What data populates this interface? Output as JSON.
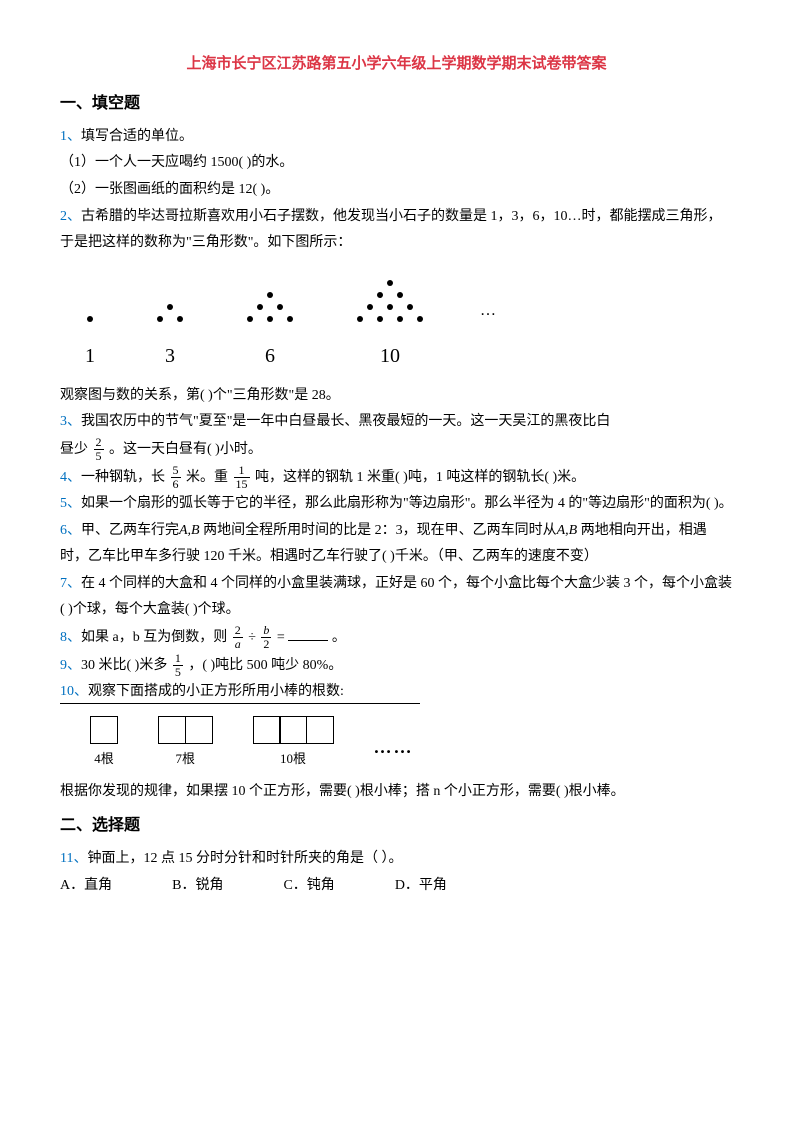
{
  "doc_title": "上海市长宁区江苏路第五小学六年级上学期数学期末试卷带答案",
  "section1_heading": "一、填空题",
  "section2_heading": "二、选择题",
  "triangle_figure": {
    "groups": [
      1,
      3,
      6,
      10
    ],
    "ellipsis": "…"
  },
  "squares_figure": {
    "groups": [
      {
        "squares": 1,
        "label": "4根"
      },
      {
        "squares": 2,
        "label": "7根"
      },
      {
        "squares": 3,
        "label": "10根"
      }
    ],
    "dots": "……"
  },
  "q": {
    "1": {
      "num": "1、",
      "text": "填写合适的单位。",
      "sub1": "（1）一个人一天应喝约 1500(       )的水。",
      "sub2": "（2）一张图画纸的面积约是 12(       )。"
    },
    "2": {
      "num": "2、",
      "text_a": "古希腊的毕达哥拉斯喜欢用小石子摆数，他发现当小石子的数量是 1，3，6，10…时，都能摆成三角形，于是把这样的数称为\"三角形数\"。如下图所示：",
      "text_b": "观察图与数的关系，第(       )个\"三角形数\"是 28。"
    },
    "3": {
      "num": "3、",
      "text_a": "我国农历中的节气\"夏至\"是一年中白昼最长、黑夜最短的一天。这一天吴江的黑夜比白",
      "text_b": "昼少",
      "frac": {
        "n": "2",
        "d": "5"
      },
      "text_c": "。这一天白昼有(       )小时。"
    },
    "4": {
      "num": "4、",
      "text_a": "一种钢轨，长",
      "frac1": {
        "n": "5",
        "d": "6"
      },
      "text_b": "米。重",
      "frac2": {
        "n": "1",
        "d": "15"
      },
      "text_c": "吨，这样的钢轨 1 米重(       )吨，1 吨这样的钢轨长(       )米。"
    },
    "5": {
      "num": "5、",
      "text": "如果一个扇形的弧长等于它的半径，那么此扇形称为\"等边扇形\"。那么半径为 4 的\"等边扇形\"的面积为(       )。"
    },
    "6": {
      "num": "6、",
      "text_a": "甲、乙两车行完",
      "ab1": "A,B",
      "text_b": " 两地间全程所用时间的比是 2：3，现在甲、乙两车同时从",
      "ab2": "A,B",
      "text_c": " 两地相向开出，相遇时，乙车比甲车多行驶 120 千米。相遇时乙车行驶了(       )千米。（甲、乙两车的速度不变）"
    },
    "7": {
      "num": "7、",
      "text": "在 4 个同样的大盒和 4 个同样的小盒里装满球，正好是 60 个，每个小盒比每个大盒少装 3 个，每个小盒装(       )个球，每个大盒装(       )个球。"
    },
    "8": {
      "num": "8、",
      "text_a": "如果 a，b 互为倒数，则",
      "frac_a": {
        "n": "2",
        "d": "a"
      },
      "div": "÷",
      "frac_b": {
        "n": "b",
        "d": "2"
      },
      "eq": "=",
      "text_b": "。"
    },
    "9": {
      "num": "9、",
      "text_a": "30 米比(       )米多",
      "frac": {
        "n": "1",
        "d": "5"
      },
      "text_b": "，(       )吨比 500 吨少 80%。"
    },
    "10": {
      "num": "10、",
      "text_a": "观察下面搭成的小正方形所用小棒的根数:",
      "text_b": "根据你发现的规律，如果摆 10 个正方形，需要(       )根小棒；搭 n 个小正方形，需要(       )根小棒。"
    },
    "11": {
      "num": "11、",
      "text": "钟面上，12 点 15 分时分针和时针所夹的角是（      ）。",
      "choice_a": "A．直角",
      "choice_b": "B．锐角",
      "choice_c": "C．钝角",
      "choice_d": "D．平角"
    }
  },
  "colors": {
    "title": "#dc3545",
    "qnum": "#0070c0",
    "text": "#000000",
    "background": "#ffffff"
  }
}
